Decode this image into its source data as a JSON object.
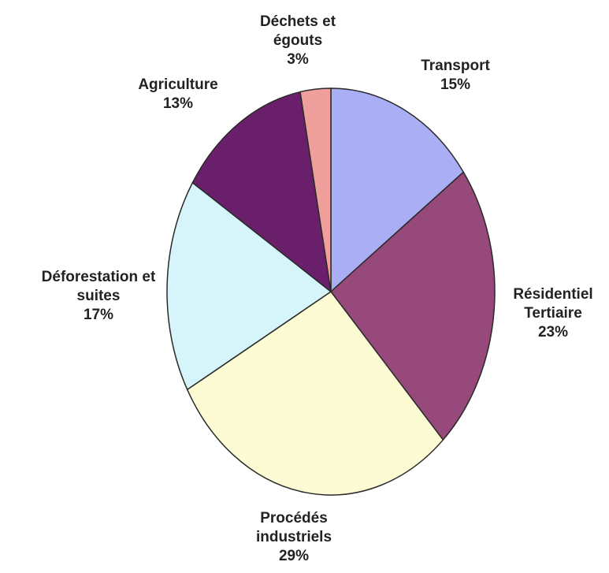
{
  "chart_data": {
    "type": "pie",
    "categories": [
      "Transport",
      "Résidentiel Tertiaire",
      "Procédés industriels",
      "Déforestation et suites",
      "Agriculture",
      "Déchets et égouts"
    ],
    "values": [
      15,
      23,
      29,
      17,
      13,
      3
    ],
    "value_labels": [
      "15%",
      "23%",
      "29%",
      "17%",
      "13%",
      "3%"
    ],
    "colors": [
      "#a9aef5",
      "#96497a",
      "#fdfbd3",
      "#d5f5fb",
      "#6a1f6a",
      "#f0a09c"
    ]
  }
}
